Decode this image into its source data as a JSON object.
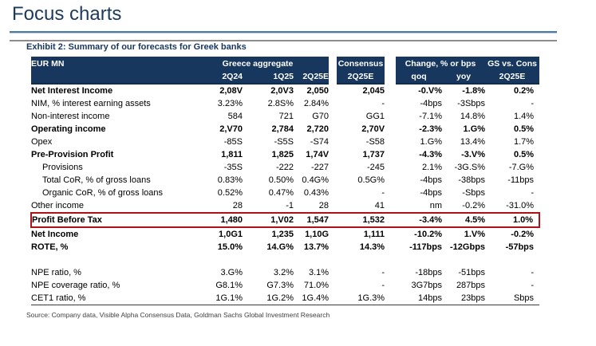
{
  "page_title": "Focus charts",
  "exhibit_title": "Exhibit 2: Summary of our forecasts for Greek banks",
  "source_note": "Source: Company data, Visible Alpha Consensus Data, Goldman Sachs Global Investment Research",
  "colors": {
    "header_navy": "#17375e",
    "title_navy": "#1b3a5e",
    "highlight_red": "#b01116",
    "rule_blue": "#4f7aa6",
    "rule_gray": "#8c8c8c"
  },
  "table": {
    "corner_label": "EUR MN",
    "group_headers": {
      "greece": "Greece aggregate",
      "consensus": "Consensus",
      "change": "Change, % or bps",
      "gs_vs_cons": "GS vs. Cons"
    },
    "sub_headers": {
      "greece_1": "2Q24",
      "greece_2": "1Q25",
      "greece_3": "2Q25E",
      "consensus": "2Q25E",
      "change_qoq": "qoq",
      "change_yoy": "yoy",
      "gs_vs_cons": "2Q25E"
    },
    "rows": [
      {
        "label": "Net Interest Income",
        "bold": true,
        "indent": false,
        "highlight": false,
        "spacer": false,
        "values": [
          "2,08V",
          "2,0V3",
          "2,050",
          "2,045",
          "-0.V%",
          "-1.8%",
          "0.2%"
        ]
      },
      {
        "label": "NIM, % interest earning assets",
        "bold": false,
        "indent": false,
        "highlight": false,
        "spacer": false,
        "values": [
          "3.23%",
          "2.8S%",
          "2.84%",
          "-",
          "-4bps",
          "-3Sbps",
          "-"
        ]
      },
      {
        "label": "Non-interest income",
        "bold": false,
        "indent": false,
        "highlight": false,
        "spacer": false,
        "values": [
          "584",
          "721",
          "G70",
          "GG1",
          "-7.1%",
          "14.8%",
          "1.4%"
        ]
      },
      {
        "label": "Operating income",
        "bold": true,
        "indent": false,
        "highlight": false,
        "spacer": false,
        "values": [
          "2,V70",
          "2,784",
          "2,720",
          "2,70V",
          "-2.3%",
          "1.G%",
          "0.5%"
        ]
      },
      {
        "label": "Opex",
        "bold": false,
        "indent": false,
        "highlight": false,
        "spacer": false,
        "values": [
          "-85S",
          "-S5S",
          "-S74",
          "-S58",
          "1.G%",
          "13.4%",
          "1.7%"
        ]
      },
      {
        "label": "Pre-Provision Profit",
        "bold": true,
        "indent": false,
        "highlight": false,
        "spacer": false,
        "values": [
          "1,811",
          "1,825",
          "1,74V",
          "1,737",
          "-4.3%",
          "-3.V%",
          "0.5%"
        ]
      },
      {
        "label": "Provisions",
        "bold": false,
        "indent": true,
        "highlight": false,
        "spacer": false,
        "values": [
          "-35S",
          "-222",
          "-227",
          "-245",
          "2.1%",
          "-3G.S%",
          "-7.G%"
        ]
      },
      {
        "label": "Total CoR, % of gross loans",
        "bold": false,
        "indent": true,
        "highlight": false,
        "spacer": false,
        "values": [
          "0.83%",
          "0.50%",
          "0.4G%",
          "0.5G%",
          "-4bps",
          "-38bps",
          "-11bps"
        ]
      },
      {
        "label": "Organic CoR, % of gross loans",
        "bold": false,
        "indent": true,
        "highlight": false,
        "spacer": false,
        "values": [
          "0.52%",
          "0.47%",
          "0.43%",
          "-",
          "-4bps",
          "-Sbps",
          "-"
        ]
      },
      {
        "label": "Other income",
        "bold": false,
        "indent": false,
        "highlight": false,
        "spacer": false,
        "values": [
          "28",
          "-1",
          "28",
          "41",
          "nm",
          "-0.2%",
          "-31.0%"
        ]
      },
      {
        "label": "Profit Before Tax",
        "bold": true,
        "indent": false,
        "highlight": true,
        "spacer": false,
        "values": [
          "1,480",
          "1,V02",
          "1,547",
          "1,532",
          "-3.4%",
          "4.5%",
          "1.0%"
        ]
      },
      {
        "label": "Net Income",
        "bold": true,
        "indent": false,
        "highlight": false,
        "spacer": false,
        "values": [
          "1,0G1",
          "1,235",
          "1,10G",
          "1,111",
          "-10.2%",
          "1.V%",
          "-0.2%"
        ]
      },
      {
        "label": "ROTE, %",
        "bold": true,
        "indent": false,
        "highlight": false,
        "spacer": false,
        "values": [
          "15.0%",
          "14.G%",
          "13.7%",
          "14.3%",
          "-117bps",
          "-12Gbps",
          "-57bps"
        ]
      },
      {
        "label": "",
        "bold": false,
        "indent": false,
        "highlight": false,
        "spacer": true,
        "values": [
          "",
          "",
          "",
          "",
          "",
          "",
          ""
        ]
      },
      {
        "label": "NPE ratio, %",
        "bold": false,
        "indent": false,
        "highlight": false,
        "spacer": false,
        "values": [
          "3.G%",
          "3.2%",
          "3.1%",
          "-",
          "-18bps",
          "-51bps",
          "-"
        ]
      },
      {
        "label": "NPE coverage ratio, %",
        "bold": false,
        "indent": false,
        "highlight": false,
        "spacer": false,
        "values": [
          "G8.1%",
          "G7.3%",
          "71.0%",
          "-",
          "3G7bps",
          "287bps",
          "-"
        ]
      },
      {
        "label": "CET1 ratio, %",
        "bold": false,
        "indent": false,
        "highlight": false,
        "spacer": false,
        "values": [
          "1G.1%",
          "1G.2%",
          "1G.4%",
          "1G.3%",
          "14bps",
          "23bps",
          "Sbps"
        ]
      }
    ]
  }
}
